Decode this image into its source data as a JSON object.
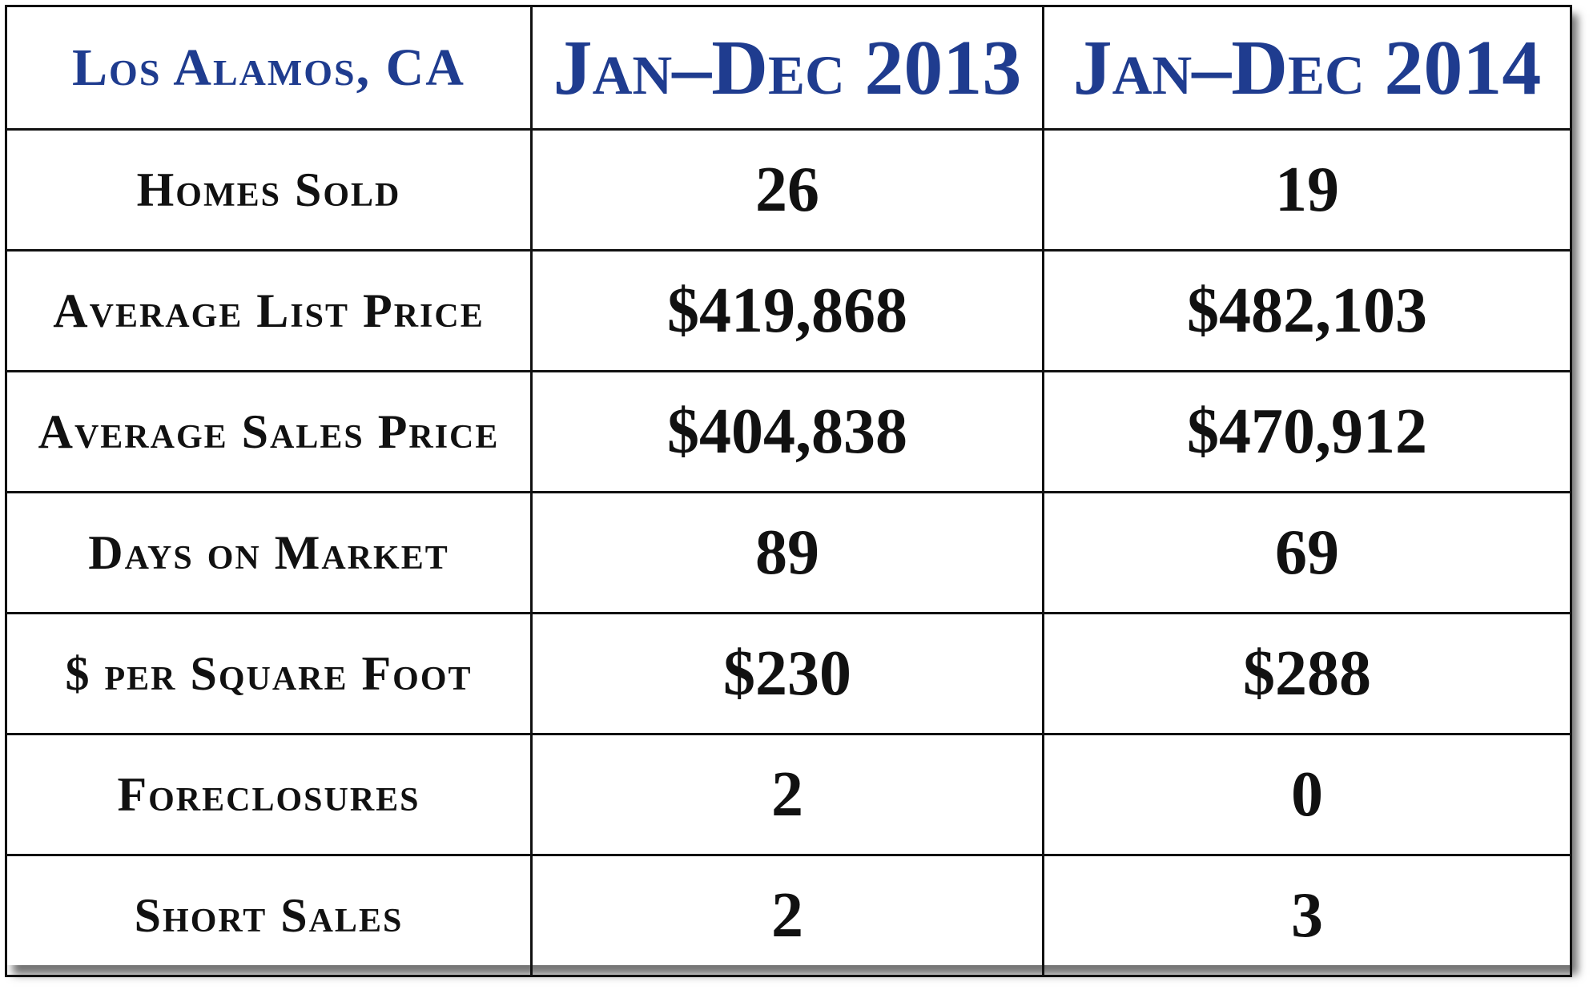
{
  "header": {
    "title": "Los Alamos, CA",
    "columns": [
      "Jan–Dec 2013",
      "Jan–Dec 2014"
    ]
  },
  "table": {
    "rows": [
      [
        "Homes Sold",
        "26",
        "19"
      ],
      [
        "Average List Price",
        "$419,868",
        "$482,103"
      ],
      [
        "Average Sales Price",
        "$404,838",
        "$470,912"
      ],
      [
        "Days on Market",
        "89",
        "69"
      ],
      [
        "$ per Square Foot",
        "$230",
        "$288"
      ],
      [
        "Foreclosures",
        "2",
        "0"
      ],
      [
        "Short Sales",
        "2",
        "3"
      ]
    ]
  }
}
